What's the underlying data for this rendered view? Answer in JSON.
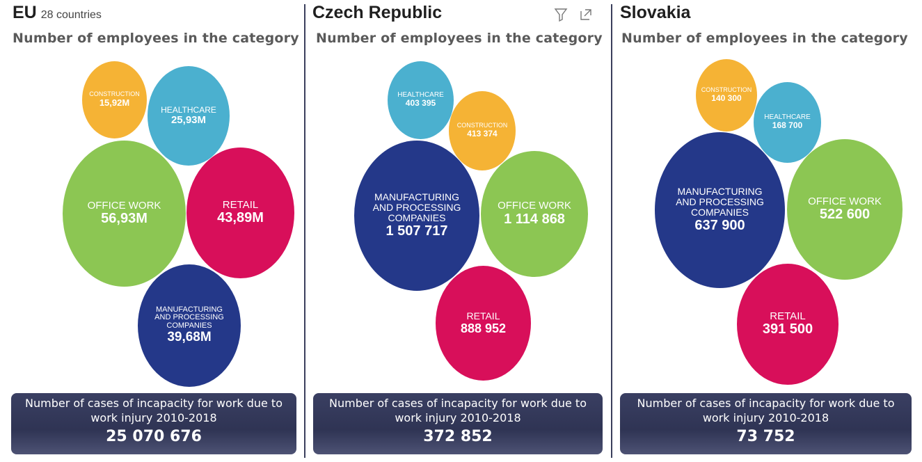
{
  "colors": {
    "construction": "#f5b335",
    "healthcare": "#4bb0cf",
    "office": "#8cc653",
    "retail": "#d80f5a",
    "manufacturing": "#243889",
    "footer": "#2f3454"
  },
  "panels": [
    {
      "title": "EU",
      "title_sub": "28 countries",
      "subtitle": "Number of employees in the category",
      "bubbles": [
        {
          "label": "CONSTRUCTION",
          "value": "15,92M"
        },
        {
          "label": "HEALTHCARE",
          "value": "25,93M"
        },
        {
          "label": "OFFICE WORK",
          "value": "56,93M"
        },
        {
          "label": "RETAIL",
          "value": "43,89M"
        },
        {
          "label": "MANUFACTURING\nAND PROCESSING\nCOMPANIES",
          "value": "39,68M"
        }
      ],
      "footer_label": "Number of cases of incapacity for work due to work injury 2010-2018",
      "footer_value": "25 070 676"
    },
    {
      "title": "Czech Republic",
      "subtitle": "Number of employees in the category",
      "icons": [
        "filter-icon",
        "expand-icon"
      ],
      "bubbles": [
        {
          "label": "HEALTHCARE",
          "value": "403 395"
        },
        {
          "label": "CONSTRUCTION",
          "value": "413 374"
        },
        {
          "label": "MANUFACTURING\nAND PROCESSING\nCOMPANIES",
          "value": "1 507 717"
        },
        {
          "label": "OFFICE WORK",
          "value": "1 114 868"
        },
        {
          "label": "RETAIL",
          "value": "888 952"
        }
      ],
      "footer_label": "Number of cases of incapacity for work due to work injury 2010-2018",
      "footer_value": "372 852"
    },
    {
      "title": "Slovakia",
      "subtitle": "Number of employees in the category",
      "bubbles": [
        {
          "label": "CONSTRUCTION",
          "value": "140 300"
        },
        {
          "label": "HEALTHCARE",
          "value": "168 700"
        },
        {
          "label": "MANUFACTURING\nAND PROCESSING\nCOMPANIES",
          "value": "637 900"
        },
        {
          "label": "OFFICE WORK",
          "value": "522 600"
        },
        {
          "label": "RETAIL",
          "value": "391 500"
        }
      ],
      "footer_label": "Number of cases of incapacity for work due to work injury 2010-2018",
      "footer_value": "73 752"
    }
  ]
}
